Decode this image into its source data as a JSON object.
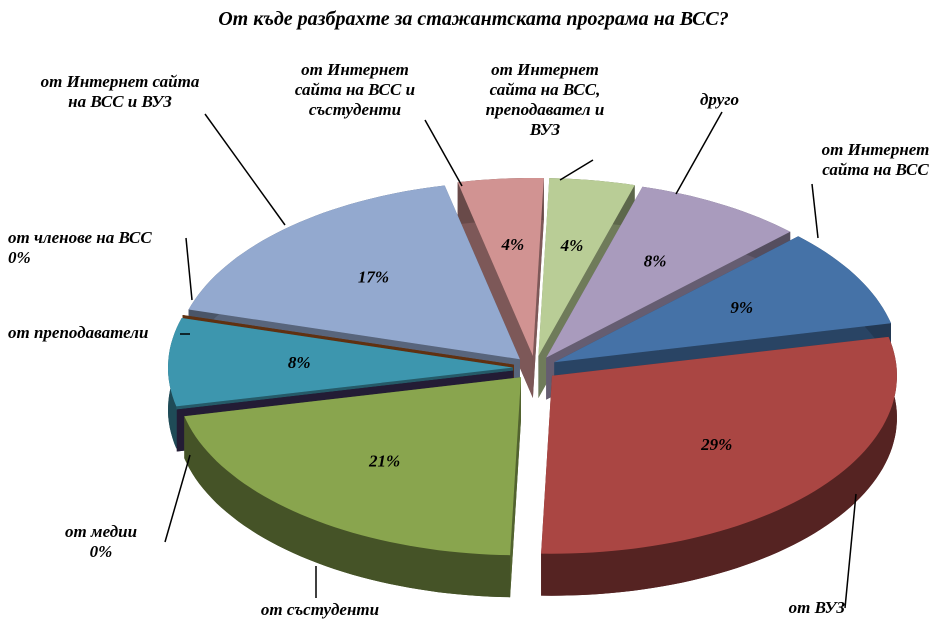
{
  "chart_data": {
    "type": "pie3d",
    "title": "От къде разбрахте за стажантската програма на ВСС?",
    "categories": [
      "от Интернет сайта на ВСС",
      "от ВУЗ",
      "от състуденти",
      "от медии",
      "от преподаватели",
      "от членове на ВСС",
      "от Интернет сайта на ВСС и ВУЗ",
      "от Интернет сайта на ВСС и състуденти",
      "от Интернет сайта на ВСС, преподавател и ВУЗ",
      "друго"
    ],
    "values": [
      9,
      29,
      21,
      0,
      8,
      0,
      17,
      4,
      4,
      8
    ],
    "value_labels": [
      "9%",
      "29%",
      "21%",
      "0%",
      "8%",
      "0%",
      "17%",
      "4%",
      "4%",
      "8%"
    ],
    "colors": [
      "#4572a7",
      "#aa4643",
      "#89a54e",
      "#3a2e58",
      "#3d96ae",
      "#a0521d",
      "#93a9cf",
      "#d19392",
      "#b9cd96",
      "#a99bbd"
    ]
  }
}
